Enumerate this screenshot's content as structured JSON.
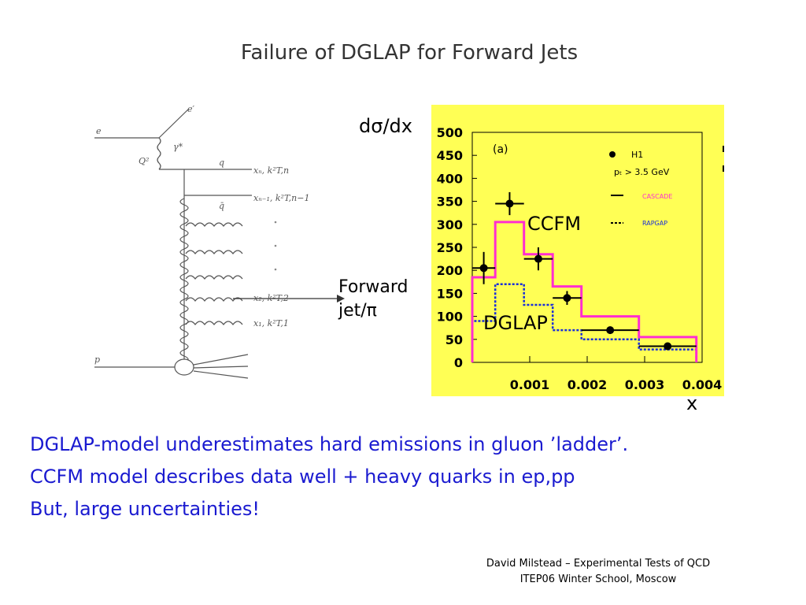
{
  "slide": {
    "title": "Failure of DGLAP for Forward Jets",
    "body_lines": [
      "DGLAP-model underestimates hard emissions in gluon ’ladder’.",
      "CCFM model describes data well + heavy quarks in ep,pp",
      "But, large uncertainties!"
    ],
    "footer_line1": "David Milstead – Experimental Tests of QCD",
    "footer_line2": "ITEP06 Winter School, Moscow"
  },
  "diagram": {
    "e_label": "e",
    "e_prime_label": "e′",
    "gamma_label": "γ*",
    "q2_label": "Q²",
    "q_label": "q",
    "qbar_label": "q̄",
    "p_label": "p",
    "xn_label": "xₙ, k²T,n",
    "xn1_label": "xₙ₋₁, k²T,n−1",
    "x2_label": "x₂, k²T,2",
    "x1_label": "x₁, k²T,1",
    "forward_label_1": "Forward",
    "forward_label_2": "jet/π"
  },
  "chart_data": {
    "type": "histogram",
    "ylabel": "dσ/dx",
    "xlabel": "x",
    "panel_label": "(a)",
    "xlim": [
      0.0,
      0.004
    ],
    "ylim": [
      0,
      500
    ],
    "x_ticks": [
      "0.001",
      "0.002",
      "0.003",
      "0.004"
    ],
    "y_ticks": [
      "0",
      "50",
      "100",
      "150",
      "200",
      "250",
      "300",
      "350",
      "400",
      "450",
      "500"
    ],
    "bin_edges": [
      0.0,
      0.0004,
      0.0009,
      0.0014,
      0.0019,
      0.0029,
      0.0039
    ],
    "legend": {
      "h1": "H1",
      "cut": "pₜ > 3.5 GeV",
      "casdade": "CASCADE",
      "rapgap": "RAPGAP"
    },
    "annotations": {
      "ccfm": "CCFM",
      "dglap": "DGLAP"
    },
    "series": [
      {
        "name": "H1",
        "style": "points",
        "x": [
          0.0002,
          0.00065,
          0.00115,
          0.00165,
          0.0024,
          0.0034
        ],
        "y": [
          205,
          345,
          225,
          140,
          70,
          35
        ],
        "yerr": [
          35,
          25,
          25,
          15,
          8,
          5
        ],
        "xerr": [
          0.0002,
          0.00025,
          0.00025,
          0.00025,
          0.0005,
          0.0005
        ]
      },
      {
        "name": "CASCADE",
        "style": "solid",
        "color": "#ff2dd0",
        "values": [
          185,
          305,
          235,
          165,
          100,
          55
        ]
      },
      {
        "name": "RAPGAP",
        "style": "dotted",
        "color": "#1a2fd8",
        "values": [
          90,
          170,
          125,
          70,
          50,
          28
        ]
      }
    ],
    "colors": {
      "background": "#ffff55",
      "casdade": "#ff2dd0",
      "rapgap": "#1a2fd8"
    }
  }
}
